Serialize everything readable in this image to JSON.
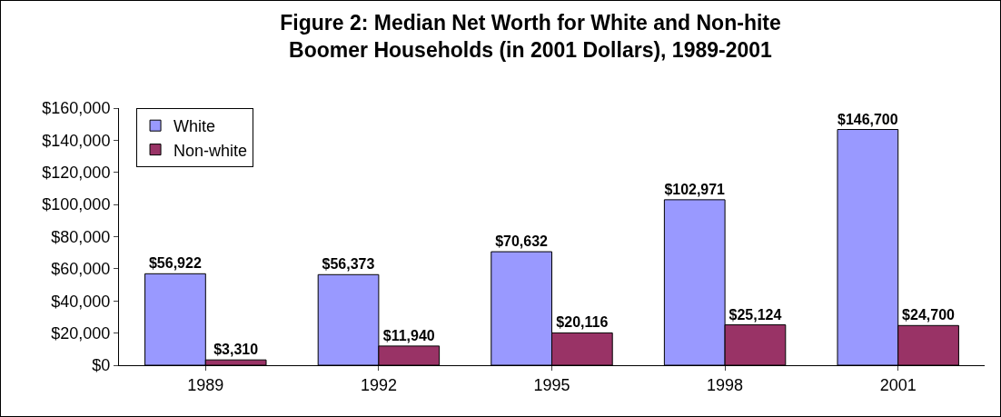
{
  "chart_data": {
    "type": "bar",
    "title": "Figure 2: Median Net Worth for White and Non-hite\nBoomer Households (in 2001 Dollars), 1989-2001",
    "categories": [
      "1989",
      "1992",
      "1995",
      "1998",
      "2001"
    ],
    "series": [
      {
        "name": "White",
        "color": "#9999ff",
        "values": [
          56922,
          56373,
          70632,
          102971,
          146700
        ],
        "value_labels": [
          "$56,922",
          "$56,373",
          "$70,632",
          "$102,971",
          "$146,700"
        ]
      },
      {
        "name": "Non-white",
        "color": "#993366",
        "values": [
          3310,
          11940,
          20116,
          25124,
          24700
        ],
        "value_labels": [
          "$3,310",
          "$11,940",
          "$20,116",
          "$25,124",
          "$24,700"
        ]
      }
    ],
    "ylim": [
      0,
      160000
    ],
    "yticks": [
      {
        "value": 0,
        "label": "$0"
      },
      {
        "value": 20000,
        "label": "$20,000"
      },
      {
        "value": 40000,
        "label": "$40,000"
      },
      {
        "value": 60000,
        "label": "$60,000"
      },
      {
        "value": 80000,
        "label": "$80,000"
      },
      {
        "value": 100000,
        "label": "$100,000"
      },
      {
        "value": 120000,
        "label": "$120,000"
      },
      {
        "value": 140000,
        "label": "$140,000"
      },
      {
        "value": 160000,
        "label": "$160,000"
      }
    ],
    "grid": false,
    "legend": "top left"
  }
}
